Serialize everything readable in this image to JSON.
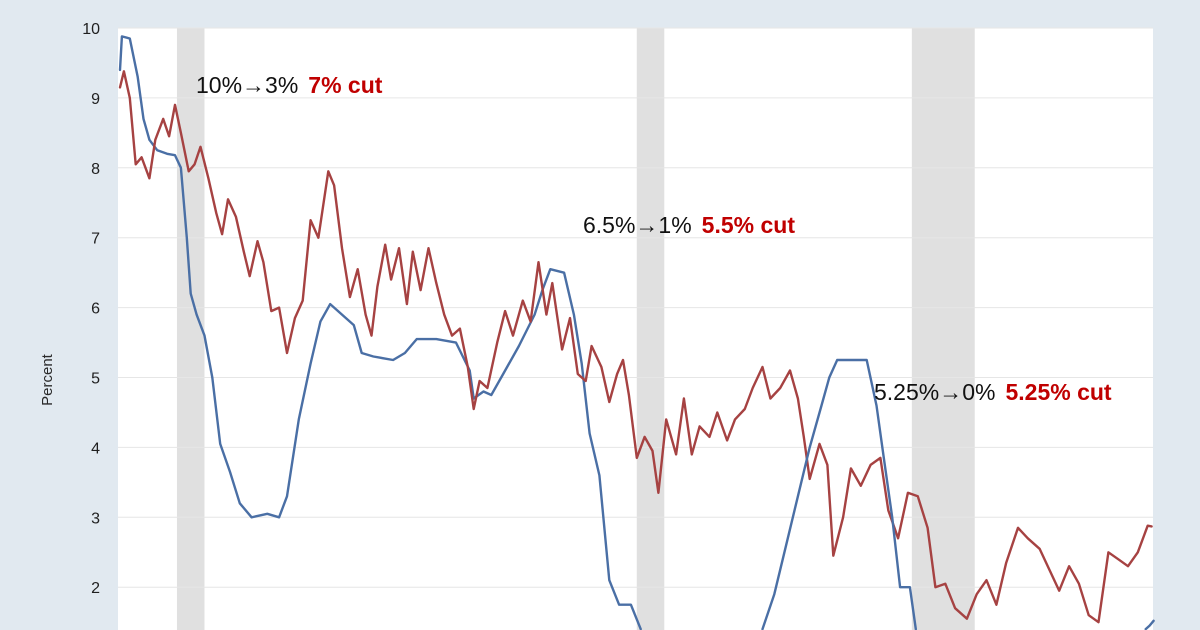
{
  "chart_data": {
    "type": "line",
    "ylabel": "Percent",
    "ylim": [
      1.4,
      10
    ],
    "xlim": [
      0,
      100
    ],
    "y_ticks": [
      "2",
      "3",
      "4",
      "5",
      "6",
      "7",
      "8",
      "9",
      "10"
    ],
    "grid": "horizontal",
    "recessions": [
      [
        1.5,
        2.2
      ],
      [
        13.2,
        13.9
      ],
      [
        20.2,
        21.8
      ]
    ],
    "series": [
      {
        "color": "#4a6fa5",
        "points": [
          [
            0.05,
            9.4
          ],
          [
            0.1,
            9.88
          ],
          [
            0.3,
            9.85
          ],
          [
            0.5,
            9.3
          ],
          [
            0.65,
            8.7
          ],
          [
            0.8,
            8.4
          ],
          [
            1.0,
            8.25
          ],
          [
            1.25,
            8.2
          ],
          [
            1.45,
            8.18
          ],
          [
            1.6,
            8.0
          ],
          [
            1.75,
            7.0
          ],
          [
            1.85,
            6.2
          ],
          [
            2.0,
            5.9
          ],
          [
            2.2,
            5.6
          ],
          [
            2.4,
            5.0
          ],
          [
            2.6,
            4.05
          ],
          [
            2.85,
            3.65
          ],
          [
            3.1,
            3.2
          ],
          [
            3.4,
            3.0
          ],
          [
            3.8,
            3.05
          ],
          [
            4.1,
            3.0
          ],
          [
            4.3,
            3.3
          ],
          [
            4.6,
            4.4
          ],
          [
            4.9,
            5.2
          ],
          [
            5.15,
            5.8
          ],
          [
            5.4,
            6.05
          ],
          [
            5.7,
            5.9
          ],
          [
            6.0,
            5.75
          ],
          [
            6.2,
            5.35
          ],
          [
            6.5,
            5.3
          ],
          [
            7.0,
            5.25
          ],
          [
            7.3,
            5.35
          ],
          [
            7.6,
            5.55
          ],
          [
            8.1,
            5.55
          ],
          [
            8.6,
            5.5
          ],
          [
            8.95,
            5.1
          ],
          [
            9.05,
            4.7
          ],
          [
            9.3,
            4.8
          ],
          [
            9.5,
            4.75
          ],
          [
            9.75,
            5.0
          ],
          [
            10.2,
            5.45
          ],
          [
            10.6,
            5.9
          ],
          [
            10.8,
            6.25
          ],
          [
            11.0,
            6.55
          ],
          [
            11.35,
            6.5
          ],
          [
            11.6,
            5.9
          ],
          [
            11.8,
            5.2
          ],
          [
            12.0,
            4.2
          ],
          [
            12.25,
            3.6
          ],
          [
            12.5,
            2.1
          ],
          [
            12.75,
            1.75
          ],
          [
            13.05,
            1.75
          ],
          [
            13.3,
            1.4
          ]
        ]
      },
      {
        "color": "#a64242",
        "points": [
          [
            0.05,
            9.15
          ],
          [
            0.15,
            9.38
          ],
          [
            0.3,
            9.0
          ],
          [
            0.45,
            8.05
          ],
          [
            0.6,
            8.15
          ],
          [
            0.8,
            7.85
          ],
          [
            0.95,
            8.4
          ],
          [
            1.15,
            8.7
          ],
          [
            1.3,
            8.45
          ],
          [
            1.45,
            8.9
          ],
          [
            1.6,
            8.5
          ],
          [
            1.8,
            7.95
          ],
          [
            1.95,
            8.05
          ],
          [
            2.1,
            8.3
          ],
          [
            2.3,
            7.85
          ],
          [
            2.5,
            7.35
          ],
          [
            2.65,
            7.05
          ],
          [
            2.8,
            7.55
          ],
          [
            3.0,
            7.3
          ],
          [
            3.2,
            6.8
          ],
          [
            3.35,
            6.45
          ],
          [
            3.55,
            6.95
          ],
          [
            3.7,
            6.65
          ],
          [
            3.9,
            5.95
          ],
          [
            4.1,
            6.0
          ],
          [
            4.3,
            5.35
          ],
          [
            4.5,
            5.85
          ],
          [
            4.7,
            6.1
          ],
          [
            4.9,
            7.25
          ],
          [
            5.1,
            7.0
          ],
          [
            5.35,
            7.95
          ],
          [
            5.5,
            7.75
          ],
          [
            5.7,
            6.85
          ],
          [
            5.9,
            6.15
          ],
          [
            6.1,
            6.55
          ],
          [
            6.3,
            5.9
          ],
          [
            6.45,
            5.6
          ],
          [
            6.6,
            6.3
          ],
          [
            6.8,
            6.9
          ],
          [
            6.95,
            6.4
          ],
          [
            7.15,
            6.85
          ],
          [
            7.35,
            6.05
          ],
          [
            7.5,
            6.8
          ],
          [
            7.7,
            6.25
          ],
          [
            7.9,
            6.85
          ],
          [
            8.1,
            6.35
          ],
          [
            8.3,
            5.9
          ],
          [
            8.5,
            5.6
          ],
          [
            8.7,
            5.7
          ],
          [
            8.9,
            5.15
          ],
          [
            9.05,
            4.55
          ],
          [
            9.2,
            4.95
          ],
          [
            9.4,
            4.85
          ],
          [
            9.65,
            5.5
          ],
          [
            9.85,
            5.95
          ],
          [
            10.05,
            5.6
          ],
          [
            10.3,
            6.1
          ],
          [
            10.5,
            5.8
          ],
          [
            10.7,
            6.65
          ],
          [
            10.9,
            5.9
          ],
          [
            11.05,
            6.35
          ],
          [
            11.3,
            5.4
          ],
          [
            11.5,
            5.85
          ],
          [
            11.7,
            5.05
          ],
          [
            11.9,
            4.95
          ],
          [
            12.05,
            5.45
          ],
          [
            12.3,
            5.15
          ],
          [
            12.5,
            4.65
          ],
          [
            12.7,
            5.05
          ],
          [
            12.85,
            5.25
          ],
          [
            13.0,
            4.75
          ],
          [
            13.2,
            3.85
          ],
          [
            13.4,
            4.15
          ],
          [
            13.6,
            3.95
          ],
          [
            13.75,
            3.35
          ],
          [
            13.95,
            4.4
          ],
          [
            14.2,
            3.9
          ],
          [
            14.4,
            4.7
          ],
          [
            14.6,
            3.9
          ],
          [
            14.8,
            4.3
          ],
          [
            15.05,
            4.15
          ],
          [
            15.25,
            4.5
          ],
          [
            15.5,
            4.1
          ],
          [
            15.7,
            4.4
          ],
          [
            15.95,
            4.55
          ],
          [
            16.15,
            4.85
          ],
          [
            16.4,
            5.15
          ],
          [
            16.6,
            4.7
          ],
          [
            16.85,
            4.85
          ],
          [
            17.1,
            5.1
          ],
          [
            17.3,
            4.7
          ],
          [
            17.45,
            4.15
          ],
          [
            17.6,
            3.55
          ],
          [
            17.85,
            4.05
          ],
          [
            18.05,
            3.75
          ],
          [
            18.2,
            2.45
          ],
          [
            18.45,
            3.0
          ],
          [
            18.65,
            3.7
          ],
          [
            18.9,
            3.45
          ],
          [
            19.15,
            3.75
          ],
          [
            19.4,
            3.85
          ],
          [
            19.6,
            3.1
          ],
          [
            19.85,
            2.7
          ],
          [
            20.1,
            3.35
          ],
          [
            20.35,
            3.3
          ],
          [
            20.6,
            2.85
          ],
          [
            20.8,
            2.0
          ],
          [
            21.05,
            2.05
          ],
          [
            21.3,
            1.7
          ],
          [
            21.6,
            1.55
          ],
          [
            21.85,
            1.9
          ],
          [
            22.1,
            2.1
          ],
          [
            22.35,
            1.75
          ],
          [
            22.6,
            2.35
          ],
          [
            22.9,
            2.85
          ],
          [
            23.15,
            2.7
          ],
          [
            23.45,
            2.55
          ],
          [
            23.7,
            2.25
          ],
          [
            23.95,
            1.95
          ],
          [
            24.2,
            2.3
          ],
          [
            24.45,
            2.05
          ],
          [
            24.7,
            1.6
          ],
          [
            24.95,
            1.5
          ],
          [
            25.2,
            2.5
          ],
          [
            25.45,
            2.4
          ],
          [
            25.7,
            2.3
          ],
          [
            25.95,
            2.5
          ],
          [
            26.2,
            2.88
          ],
          [
            26.3,
            2.87
          ]
        ]
      },
      {
        "color": "#4a6fa5",
        "points": [
          [
            16.4,
            1.4
          ],
          [
            16.7,
            1.9
          ],
          [
            17.0,
            2.6
          ],
          [
            17.3,
            3.3
          ],
          [
            17.6,
            4.0
          ],
          [
            17.9,
            4.6
          ],
          [
            18.1,
            5.0
          ],
          [
            18.3,
            5.25
          ],
          [
            18.8,
            5.25
          ],
          [
            19.05,
            5.25
          ],
          [
            19.3,
            4.6
          ],
          [
            19.5,
            3.8
          ],
          [
            19.7,
            3.0
          ],
          [
            19.9,
            2.0
          ],
          [
            20.15,
            2.0
          ],
          [
            20.3,
            1.4
          ]
        ]
      },
      {
        "color": "#4a6fa5",
        "points": [
          [
            26.15,
            1.4
          ],
          [
            26.25,
            1.45
          ],
          [
            26.35,
            1.52
          ]
        ]
      }
    ],
    "annotations": [
      {
        "text": "10%→3%",
        "cut": "7% cut"
      },
      {
        "text": "6.5%→1%",
        "cut": "5.5% cut"
      },
      {
        "text": "5.25%→0%",
        "cut": "5.25% cut"
      }
    ]
  }
}
